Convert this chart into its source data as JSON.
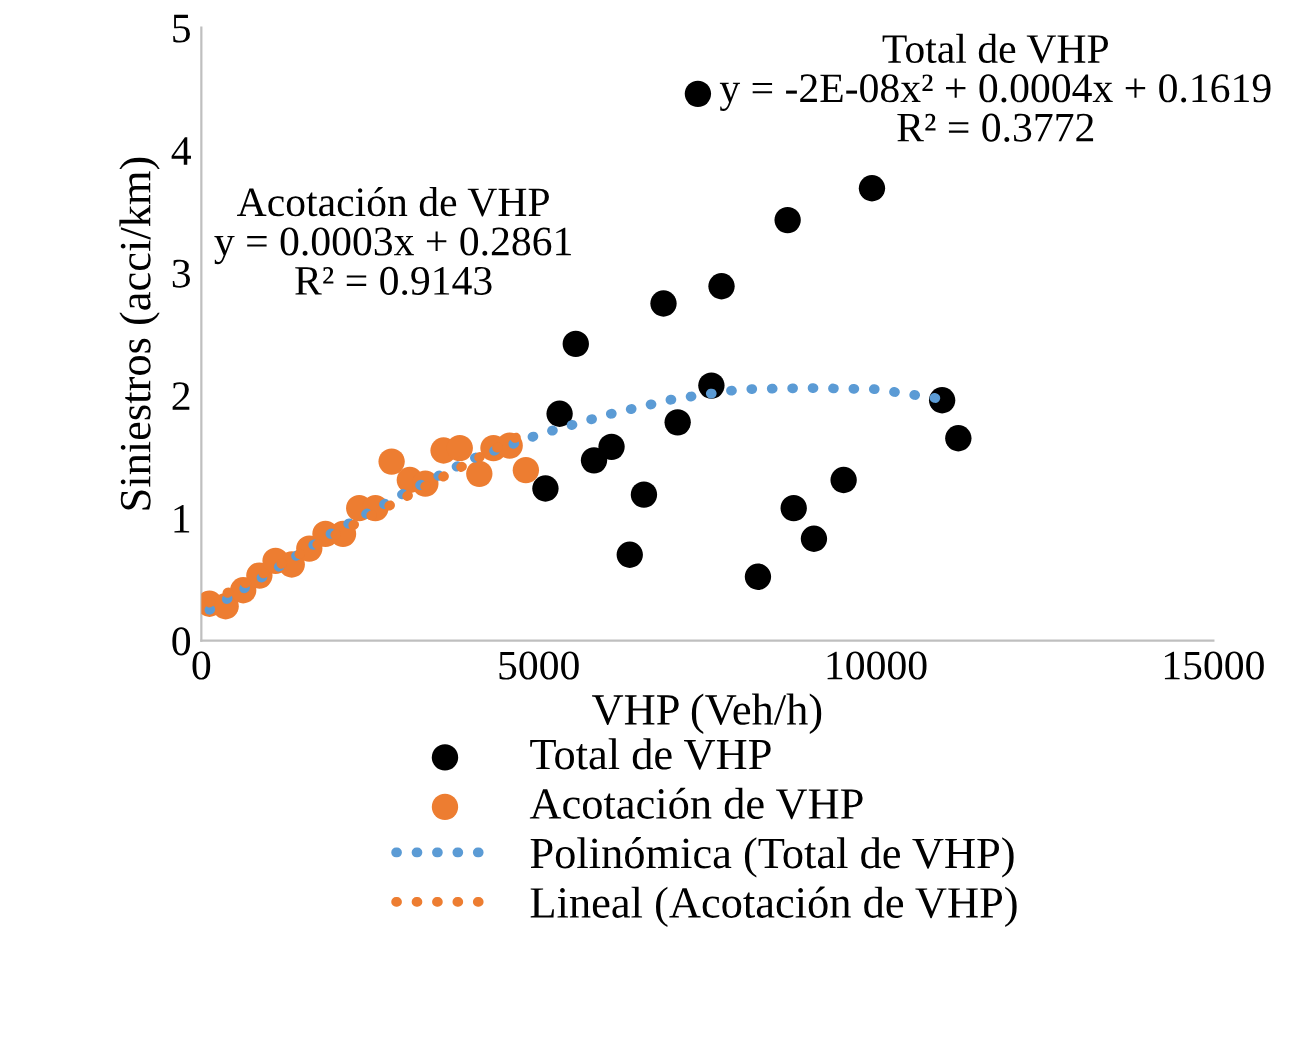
{
  "chart_data": {
    "type": "scatter",
    "xlabel": "VHP (Veh/h)",
    "ylabel": "Siniestros (acci/km)",
    "xlim": [
      0,
      15000
    ],
    "xticks": [
      0,
      5000,
      10000,
      15000
    ],
    "ylim": [
      0,
      5
    ],
    "yticks": [
      0,
      1,
      2,
      3,
      4,
      5
    ],
    "grid": false,
    "legend": "bottom",
    "annotations": [
      "Acotación de VHP\ny = 0.0003x + 0.2861\nR² = 0.9143",
      "Total de VHP\ny = -2E-08x² + 0.0004x + 0.1619\nR² = 0.3772"
    ],
    "series": [
      {
        "name": "Total de VHP",
        "marker": "circle",
        "color": "#000000",
        "x": [
          7360,
          9940,
          8690,
          7710,
          6850,
          7560,
          7060,
          6080,
          6560,
          6350,
          8250,
          9080,
          8780,
          9520,
          10980,
          11220,
          5550,
          5310,
          5820,
          5100
        ],
        "values": [
          4.46,
          3.69,
          3.43,
          2.89,
          2.75,
          2.08,
          1.78,
          1.58,
          1.19,
          0.7,
          0.52,
          0.83,
          1.08,
          1.31,
          1.96,
          1.65,
          2.42,
          1.85,
          1.47,
          1.24
        ]
      },
      {
        "name": "Acotación de VHP",
        "marker": "circle",
        "color": "#ed7d31",
        "x": [
          120,
          360,
          620,
          860,
          1100,
          1340,
          1600,
          1840,
          2100,
          2340,
          2580,
          2820,
          3090,
          3320,
          3590,
          3830,
          4120,
          4330,
          4570,
          4810
        ],
        "values": [
          0.3,
          0.28,
          0.41,
          0.53,
          0.65,
          0.62,
          0.75,
          0.87,
          0.87,
          1.08,
          1.08,
          1.46,
          1.31,
          1.28,
          1.55,
          1.57,
          1.36,
          1.57,
          1.59,
          1.39
        ]
      },
      {
        "name": "Polinómica (Total de VHP)",
        "type": "line",
        "line_style": "dotted",
        "color": "#5b9bd5",
        "x": [
          120,
          1000,
          2000,
          3000,
          4000,
          5000,
          6000,
          7000,
          8000,
          9000,
          10000,
          10980
        ],
        "values": [
          0.25,
          0.55,
          0.9,
          1.2,
          1.48,
          1.68,
          1.84,
          1.97,
          2.05,
          2.06,
          2.05,
          1.97
        ]
      },
      {
        "name": "Lineal (Acotación de VHP)",
        "type": "line",
        "line_style": "dotted",
        "color": "#ed7d31",
        "x": [
          120,
          4810
        ],
        "values": [
          0.31,
          1.7
        ]
      }
    ]
  }
}
